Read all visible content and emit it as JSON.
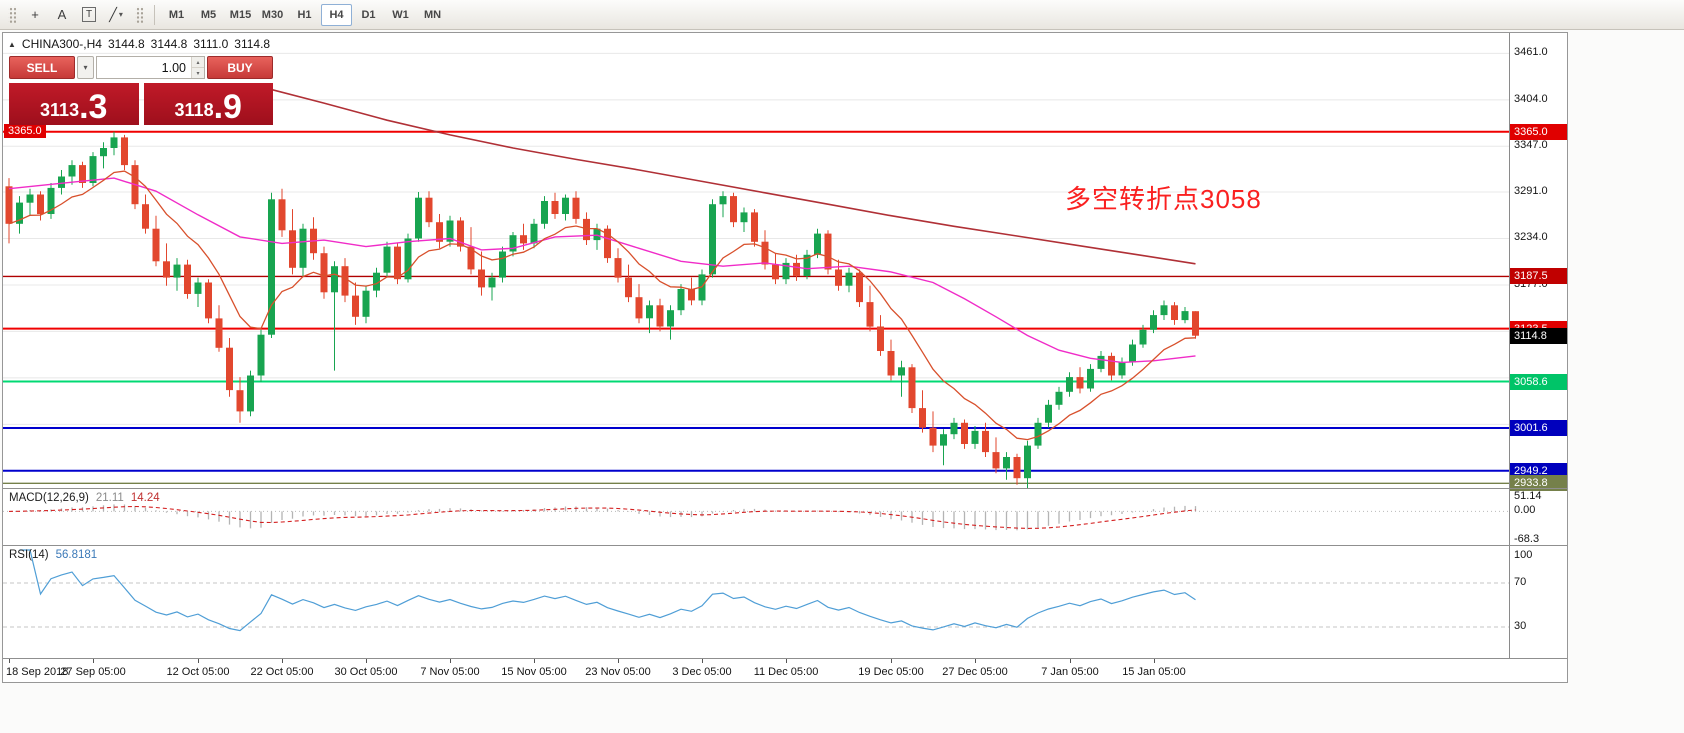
{
  "icons": {
    "panel_toggle": "▲",
    "caret_down": "▾",
    "spin_up": "▴",
    "spin_down": "▾"
  },
  "toolbar": {
    "tools": [
      {
        "name": "crosshair",
        "glyph": "+",
        "dropdown": false
      },
      {
        "name": "text-label",
        "glyph": "A",
        "dropdown": false
      },
      {
        "name": "text-frame",
        "glyph": "T",
        "dropdown": false
      },
      {
        "name": "draw-tools",
        "glyph": "╱",
        "dropdown": true
      }
    ],
    "timeframes": [
      {
        "label": "M1"
      },
      {
        "label": "M5"
      },
      {
        "label": "M15"
      },
      {
        "label": "M30"
      },
      {
        "label": "H1"
      },
      {
        "label": "H4",
        "active": true
      },
      {
        "label": "D1"
      },
      {
        "label": "W1"
      },
      {
        "label": "MN"
      }
    ]
  },
  "chart": {
    "title": "CHINA300-,H4",
    "ohlc": {
      "open": "3144.8",
      "high": "3144.8",
      "low": "3111.0",
      "close": "3114.8"
    },
    "trade_panel": {
      "sell_label": "SELL",
      "buy_label": "BUY",
      "volume": "1.00",
      "sell_price_main": "3113",
      "sell_price_pips": ".3",
      "buy_price_main": "3118",
      "buy_price_pips": ".9"
    },
    "annotation": {
      "text": "多空转折点3058",
      "color": "#fa2020"
    },
    "colors": {
      "up": "#18a450",
      "down": "#e2472e"
    },
    "scale": {
      "p_max": 3486,
      "p_min": 2928
    },
    "price_ticks": [
      {
        "p": 3461,
        "label": "3461.0"
      },
      {
        "p": 3404,
        "label": "3404.0"
      },
      {
        "p": 3347,
        "label": "3347.0"
      },
      {
        "p": 3291,
        "label": "3291.0"
      },
      {
        "p": 3234,
        "label": "3234.0"
      },
      {
        "p": 3177,
        "label": "3177.0"
      },
      {
        "p": 3120
      },
      {
        "p": 3063
      },
      {
        "p": 3006
      },
      {
        "p": 2949
      }
    ],
    "levels": [
      {
        "price": 3365.0,
        "label": "3365.0",
        "color": "#f00000",
        "badge": "#e00000",
        "w": 2,
        "left_badge": true
      },
      {
        "price": 3187.5,
        "label": "3187.5",
        "color": "#b00000",
        "badge": "#c00000",
        "w": 1.4
      },
      {
        "price": 3123.5,
        "label": "3123.5",
        "color": "#f00000",
        "badge": "#e00000",
        "w": 2
      },
      {
        "price": 3058.6,
        "label": "3058.6",
        "color": "#00d973",
        "badge": "#00c468",
        "w": 2
      },
      {
        "price": 3001.6,
        "label": "3001.6",
        "color": "#0000cd",
        "badge": "#0000bd",
        "w": 2
      },
      {
        "price": 2949.2,
        "label": "2949.2",
        "color": "#0000cd",
        "badge": "#0000bd",
        "w": 2
      },
      {
        "price": 2933.8,
        "label": "2933.8",
        "color": "#75804a",
        "badge": "#75804a",
        "w": 1.4
      }
    ],
    "current_price": {
      "value": 3114.8,
      "label": "3114.8",
      "badge": "#000000"
    },
    "time_ticks": [
      {
        "i": 0,
        "label": "18 Sep 2018"
      },
      {
        "i": 8,
        "label": "27 Sep 05:00"
      },
      {
        "i": 18,
        "label": "12 Oct 05:00"
      },
      {
        "i": 26,
        "label": "22 Oct 05:00"
      },
      {
        "i": 34,
        "label": "30 Oct 05:00"
      },
      {
        "i": 42,
        "label": "7 Nov 05:00"
      },
      {
        "i": 50,
        "label": "15 Nov 05:00"
      },
      {
        "i": 58,
        "label": "23 Nov 05:00"
      },
      {
        "i": 66,
        "label": "3 Dec 05:00"
      },
      {
        "i": 74,
        "label": "11 Dec 05:00"
      },
      {
        "i": 84,
        "label": "19 Dec 05:00"
      },
      {
        "i": 92,
        "label": "27 Dec 05:00"
      },
      {
        "i": 101,
        "label": "7 Jan 05:00"
      },
      {
        "i": 109,
        "label": "15 Jan 05:00"
      }
    ],
    "ma": {
      "fast": {
        "type": "EMA",
        "period": 10,
        "color": "#d8502c"
      },
      "medium": {
        "color": "#f02cc8",
        "points": [
          [
            0,
            3295
          ],
          [
            6,
            3303
          ],
          [
            10,
            3308
          ],
          [
            14,
            3292
          ],
          [
            18,
            3263
          ],
          [
            22,
            3236
          ],
          [
            26,
            3228
          ],
          [
            30,
            3232
          ],
          [
            34,
            3224
          ],
          [
            38,
            3230
          ],
          [
            42,
            3234
          ],
          [
            45,
            3220
          ],
          [
            48,
            3222
          ],
          [
            52,
            3236
          ],
          [
            56,
            3238
          ],
          [
            60,
            3222
          ],
          [
            64,
            3206
          ],
          [
            68,
            3200
          ],
          [
            72,
            3204
          ],
          [
            76,
            3197
          ],
          [
            80,
            3200
          ],
          [
            84,
            3193
          ],
          [
            88,
            3180
          ],
          [
            91,
            3160
          ],
          [
            94,
            3138
          ],
          [
            97,
            3115
          ],
          [
            100,
            3097
          ],
          [
            103,
            3087
          ],
          [
            106,
            3082
          ],
          [
            109,
            3084
          ],
          [
            113,
            3090
          ]
        ]
      },
      "slow": {
        "color": "#b03036",
        "points": [
          [
            24,
            3420
          ],
          [
            30,
            3400
          ],
          [
            36,
            3379
          ],
          [
            42,
            3361
          ],
          [
            48,
            3345
          ],
          [
            54,
            3331
          ],
          [
            60,
            3318
          ],
          [
            66,
            3304
          ],
          [
            72,
            3290
          ],
          [
            78,
            3276
          ],
          [
            84,
            3262
          ],
          [
            90,
            3249
          ],
          [
            96,
            3237
          ],
          [
            102,
            3225
          ],
          [
            108,
            3213
          ],
          [
            113,
            3203
          ]
        ]
      }
    },
    "candles": [
      [
        3298,
        3308,
        3228,
        3252
      ],
      [
        3252,
        3286,
        3240,
        3278
      ],
      [
        3278,
        3295,
        3262,
        3288
      ],
      [
        3288,
        3292,
        3256,
        3264
      ],
      [
        3264,
        3302,
        3258,
        3296
      ],
      [
        3296,
        3318,
        3288,
        3310
      ],
      [
        3310,
        3330,
        3300,
        3324
      ],
      [
        3324,
        3328,
        3296,
        3302
      ],
      [
        3302,
        3340,
        3298,
        3335
      ],
      [
        3335,
        3352,
        3320,
        3345
      ],
      [
        3345,
        3365,
        3336,
        3358
      ],
      [
        3358,
        3361,
        3318,
        3324
      ],
      [
        3324,
        3330,
        3270,
        3276
      ],
      [
        3276,
        3288,
        3240,
        3246
      ],
      [
        3246,
        3262,
        3200,
        3206
      ],
      [
        3206,
        3228,
        3176,
        3186
      ],
      [
        3186,
        3210,
        3170,
        3202
      ],
      [
        3202,
        3208,
        3160,
        3166
      ],
      [
        3166,
        3186,
        3150,
        3180
      ],
      [
        3180,
        3184,
        3130,
        3136
      ],
      [
        3136,
        3152,
        3095,
        3100
      ],
      [
        3100,
        3112,
        3040,
        3048
      ],
      [
        3048,
        3064,
        3008,
        3022
      ],
      [
        3022,
        3072,
        3016,
        3066
      ],
      [
        3066,
        3122,
        3058,
        3116
      ],
      [
        3116,
        3290,
        3112,
        3282
      ],
      [
        3282,
        3295,
        3236,
        3244
      ],
      [
        3244,
        3270,
        3190,
        3198
      ],
      [
        3198,
        3252,
        3188,
        3246
      ],
      [
        3246,
        3260,
        3208,
        3216
      ],
      [
        3216,
        3224,
        3160,
        3168
      ],
      [
        3168,
        3206,
        3072,
        3200
      ],
      [
        3200,
        3210,
        3156,
        3164
      ],
      [
        3164,
        3180,
        3128,
        3138
      ],
      [
        3138,
        3176,
        3130,
        3170
      ],
      [
        3170,
        3198,
        3162,
        3192
      ],
      [
        3192,
        3230,
        3186,
        3224
      ],
      [
        3224,
        3228,
        3178,
        3184
      ],
      [
        3184,
        3240,
        3180,
        3234
      ],
      [
        3234,
        3291,
        3230,
        3284
      ],
      [
        3284,
        3292,
        3248,
        3254
      ],
      [
        3254,
        3264,
        3222,
        3230
      ],
      [
        3230,
        3262,
        3224,
        3256
      ],
      [
        3256,
        3260,
        3218,
        3224
      ],
      [
        3224,
        3248,
        3190,
        3196
      ],
      [
        3196,
        3218,
        3164,
        3174
      ],
      [
        3174,
        3192,
        3158,
        3186
      ],
      [
        3186,
        3224,
        3180,
        3218
      ],
      [
        3218,
        3242,
        3212,
        3238
      ],
      [
        3238,
        3252,
        3220,
        3228
      ],
      [
        3228,
        3258,
        3222,
        3252
      ],
      [
        3252,
        3286,
        3246,
        3280
      ],
      [
        3280,
        3290,
        3258,
        3264
      ],
      [
        3264,
        3288,
        3256,
        3284
      ],
      [
        3284,
        3292,
        3252,
        3258
      ],
      [
        3258,
        3266,
        3226,
        3232
      ],
      [
        3232,
        3252,
        3220,
        3246
      ],
      [
        3246,
        3250,
        3204,
        3210
      ],
      [
        3210,
        3222,
        3180,
        3186
      ],
      [
        3186,
        3202,
        3156,
        3162
      ],
      [
        3162,
        3178,
        3130,
        3136
      ],
      [
        3136,
        3158,
        3118,
        3152
      ],
      [
        3152,
        3160,
        3120,
        3126
      ],
      [
        3126,
        3152,
        3110,
        3146
      ],
      [
        3146,
        3178,
        3140,
        3172
      ],
      [
        3172,
        3186,
        3152,
        3158
      ],
      [
        3158,
        3196,
        3152,
        3190
      ],
      [
        3190,
        3282,
        3186,
        3276
      ],
      [
        3276,
        3292,
        3260,
        3286
      ],
      [
        3286,
        3290,
        3248,
        3254
      ],
      [
        3254,
        3272,
        3242,
        3266
      ],
      [
        3266,
        3270,
        3224,
        3230
      ],
      [
        3230,
        3244,
        3196,
        3202
      ],
      [
        3202,
        3216,
        3178,
        3184
      ],
      [
        3184,
        3210,
        3178,
        3204
      ],
      [
        3204,
        3214,
        3182,
        3188
      ],
      [
        3188,
        3220,
        3184,
        3214
      ],
      [
        3214,
        3246,
        3210,
        3240
      ],
      [
        3240,
        3244,
        3190,
        3196
      ],
      [
        3196,
        3208,
        3170,
        3176
      ],
      [
        3176,
        3198,
        3168,
        3192
      ],
      [
        3192,
        3196,
        3150,
        3156
      ],
      [
        3156,
        3176,
        3120,
        3126
      ],
      [
        3126,
        3140,
        3090,
        3096
      ],
      [
        3096,
        3110,
        3060,
        3066
      ],
      [
        3066,
        3084,
        3040,
        3076
      ],
      [
        3076,
        3080,
        3020,
        3026
      ],
      [
        3026,
        3048,
        2996,
        3002
      ],
      [
        3002,
        3022,
        2972,
        2980
      ],
      [
        2980,
        3000,
        2956,
        2994
      ],
      [
        2994,
        3014,
        2988,
        3008
      ],
      [
        3008,
        3012,
        2976,
        2982
      ],
      [
        2982,
        3004,
        2976,
        2998
      ],
      [
        2998,
        3008,
        2966,
        2972
      ],
      [
        2972,
        2990,
        2946,
        2952
      ],
      [
        2952,
        2972,
        2938,
        2966
      ],
      [
        2966,
        2970,
        2932,
        2940
      ],
      [
        2940,
        2986,
        2928,
        2980
      ],
      [
        2980,
        3014,
        2976,
        3008
      ],
      [
        3008,
        3036,
        3002,
        3030
      ],
      [
        3030,
        3052,
        3024,
        3046
      ],
      [
        3046,
        3070,
        3040,
        3064
      ],
      [
        3064,
        3076,
        3044,
        3050
      ],
      [
        3050,
        3080,
        3046,
        3074
      ],
      [
        3074,
        3096,
        3070,
        3090
      ],
      [
        3090,
        3094,
        3060,
        3066
      ],
      [
        3066,
        3088,
        3062,
        3082
      ],
      [
        3082,
        3110,
        3078,
        3104
      ],
      [
        3104,
        3128,
        3100,
        3122
      ],
      [
        3122,
        3146,
        3118,
        3140
      ],
      [
        3140,
        3158,
        3134,
        3152
      ],
      [
        3152,
        3156,
        3128,
        3134
      ],
      [
        3134,
        3150,
        3130,
        3145
      ],
      [
        3144.8,
        3144.8,
        3111,
        3114.8
      ]
    ]
  },
  "macd": {
    "label": "MACD(12,26,9)",
    "main": "21.11",
    "signal": "14.24",
    "axis_max": "51.14",
    "axis_zero": "0.00",
    "axis_min": "-68.3",
    "range": {
      "max": 70,
      "min": -110
    },
    "hist_color": "#b4b4b4",
    "signal_color": "#d42020"
  },
  "rsi": {
    "label": "RSI(14)",
    "value": "56.8181",
    "axis": [
      "100",
      "70",
      "30"
    ],
    "levels": [
      70,
      30
    ],
    "color": "#4f9ed6"
  }
}
